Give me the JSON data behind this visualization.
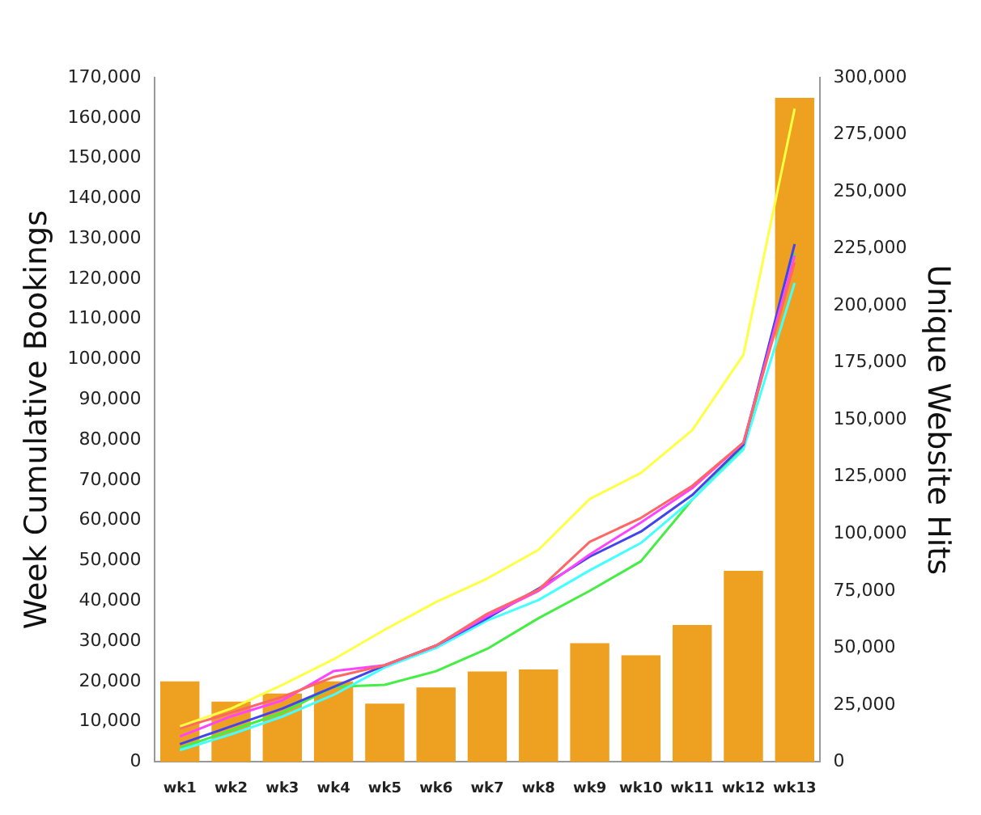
{
  "chart_data": {
    "type": "bar",
    "xlabel": null,
    "ylabel": "Week Cumulative Bookings",
    "y2label": "Unique Website Hits",
    "categories": [
      "wk1",
      "wk2",
      "wk3",
      "wk4",
      "wk5",
      "wk6",
      "wk7",
      "wk8",
      "wk9",
      "wk10",
      "wk11",
      "wk12",
      "wk13"
    ],
    "series": [
      {
        "color": "#eea020",
        "values": [
          20000,
          15000,
          17000,
          20000,
          14500,
          18500,
          22500,
          23000,
          29500,
          26500,
          34000,
          47500,
          165000
        ]
      },
      {
        "type": "line",
        "axis": "y2",
        "color": "#ffff44",
        "values": [
          15600,
          23400,
          33800,
          45000,
          58000,
          70100,
          80400,
          93000,
          115300,
          126700,
          145400,
          178500,
          286400
        ]
      },
      {
        "type": "line",
        "axis": "y2",
        "color": "#ff6666",
        "values": [
          14700,
          21600,
          28500,
          37200,
          42400,
          51000,
          65000,
          75500,
          96500,
          107000,
          121000,
          140000,
          219000
        ]
      },
      {
        "type": "line",
        "axis": "y2",
        "color": "#ff44ff",
        "values": [
          11200,
          20000,
          27000,
          39800,
          42400,
          51000,
          64000,
          75000,
          91000,
          105000,
          120000,
          140000,
          222000
        ]
      },
      {
        "type": "line",
        "axis": "y2",
        "color": "#4444ee",
        "values": [
          7800,
          15600,
          23400,
          32900,
          42400,
          51000,
          63000,
          76000,
          90000,
          101000,
          117000,
          139000,
          227000
        ]
      },
      {
        "type": "line",
        "axis": "y2",
        "color": "#44ffff",
        "values": [
          5200,
          12100,
          19900,
          29400,
          41500,
          50000,
          62000,
          71000,
          84000,
          96000,
          115000,
          137000,
          210000
        ]
      },
      {
        "type": "line",
        "axis": "y2",
        "color": "#44ee44",
        "values": [
          6100,
          13800,
          21600,
          32900,
          33800,
          39800,
          49600,
          63000,
          75000,
          88000,
          115000,
          138000,
          223000
        ]
      }
    ],
    "ylim": [
      0,
      170000
    ],
    "yticks": [
      0,
      {
        "value": 10000,
        "label": "10,000"
      },
      {
        "value": 20000,
        "label": "20,000"
      },
      {
        "value": 30000,
        "label": "30,000"
      },
      {
        "value": 40000,
        "label": "40,000"
      },
      {
        "value": 50000,
        "label": "50,000"
      },
      {
        "value": 60000,
        "label": "60,000"
      },
      {
        "value": 70000,
        "label": "70,000"
      },
      {
        "value": 80000,
        "label": "80,000"
      },
      {
        "value": 90000,
        "label": "90,000"
      },
      {
        "value": 100000,
        "label": "100,000"
      },
      {
        "value": 110000,
        "label": "110,000"
      },
      {
        "value": 120000,
        "label": "120,000"
      },
      {
        "value": 130000,
        "label": "130,000"
      },
      {
        "value": 140000,
        "label": "140,000"
      },
      {
        "value": 150000,
        "label": "150,000"
      },
      {
        "value": 160000,
        "label": "160,000"
      },
      {
        "value": 170000,
        "label": "170,000"
      }
    ],
    "y2lim": [
      0,
      300000
    ],
    "y2ticks": [
      0,
      {
        "value": 25000,
        "label": "25,000"
      },
      {
        "value": 50000,
        "label": "50,000"
      },
      {
        "value": 75000,
        "label": "75,000"
      },
      {
        "value": 100000,
        "label": "100,000"
      },
      {
        "value": 125000,
        "label": "125,000"
      },
      {
        "value": 150000,
        "label": "150,000"
      },
      {
        "value": 175000,
        "label": "175,000"
      },
      {
        "value": 200000,
        "label": "200,000"
      },
      {
        "value": 225000,
        "label": "225,000"
      },
      {
        "value": 250000,
        "label": "250,000"
      },
      {
        "value": 275000,
        "label": "275,000"
      },
      {
        "value": 300000,
        "label": "300,000"
      }
    ],
    "grid": false,
    "legend": false,
    "marker": "none"
  }
}
